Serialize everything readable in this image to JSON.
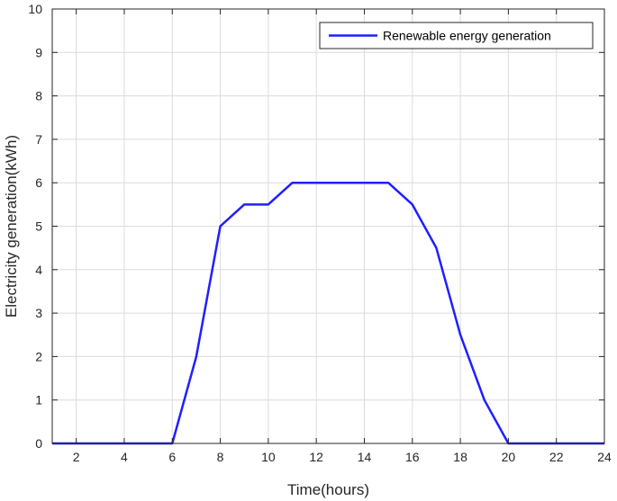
{
  "chart_data": {
    "type": "line",
    "title": "",
    "xlabel": "Time(hours)",
    "ylabel": "Electricity generation(kWh)",
    "xlim": [
      1,
      24
    ],
    "ylim": [
      0,
      10
    ],
    "xticks": [
      2,
      4,
      6,
      8,
      10,
      12,
      14,
      16,
      18,
      20,
      22,
      24
    ],
    "yticks": [
      0,
      1,
      2,
      3,
      4,
      5,
      6,
      7,
      8,
      9,
      10
    ],
    "grid": true,
    "legend_position": "top-right",
    "series": [
      {
        "name": "Renewable energy generation",
        "color": "#1f1fff",
        "x": [
          1,
          2,
          3,
          4,
          5,
          6,
          7,
          8,
          9,
          10,
          11,
          12,
          13,
          14,
          15,
          16,
          17,
          18,
          19,
          20,
          21,
          22,
          23,
          24
        ],
        "y": [
          0,
          0,
          0,
          0,
          0,
          0,
          2,
          5,
          5.5,
          5.5,
          6,
          6,
          6,
          6,
          6,
          5.5,
          4.5,
          2.5,
          1,
          0,
          0,
          0,
          0,
          0
        ]
      }
    ]
  },
  "labels": {
    "xlabel": "Time(hours)",
    "ylabel": "Electricity generation(kWh)",
    "legend": "Renewable energy generation"
  }
}
